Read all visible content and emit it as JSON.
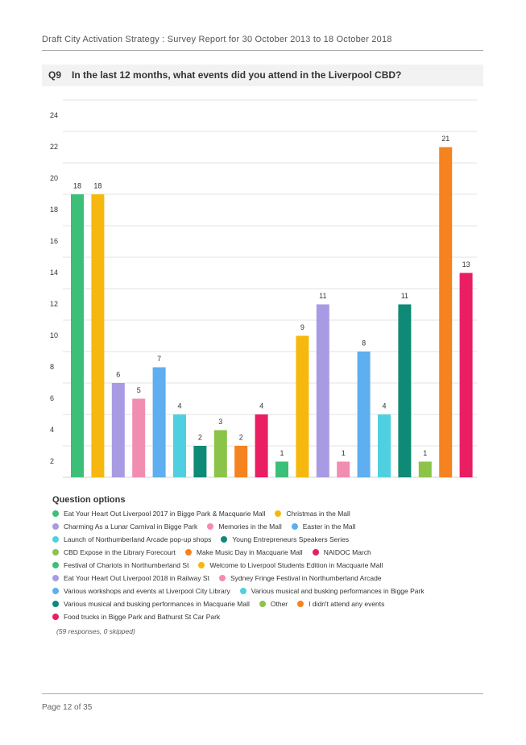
{
  "header": "Draft City Activation Strategy : Survey Report for 30 October 2013 to 18 October 2018",
  "question": {
    "number": "Q9",
    "text": "In the last 12 months, what events did you attend in the Liverpool CBD?"
  },
  "chart_data": {
    "type": "bar",
    "categories": [
      "Eat Your Heart Out Liverpool 2017 in Bigge Park & Macquarie Mall",
      "Christmas in the Mall",
      "Charming As a Lunar Carnival in Bigge Park",
      "Memories in the Mall",
      "Easter in the Mall",
      "Launch of Northumberland Arcade pop-up shops",
      "Young Entrepreneurs Speakers Series",
      "CBD Expose in the Library Forecourt",
      "Make Music Day in Macquarie Mall",
      "NAIDOC March",
      "Festival of Chariots in Northumberland St",
      "Welcome to Liverpool Students Edition in Macquarie Mall",
      "Eat Your Heart Out Liverpool 2018 in Railway St",
      "Sydney Fringe Festival in Northumberland Arcade",
      "Various workshops and events at Liverpool City Library",
      "Various musical and busking performances in Bigge Park",
      "Various musical and busking performances in Macquarie Mall",
      "Other",
      "I didn't attend any events",
      "Food trucks in Bigge Park and Bathurst St Car Park"
    ],
    "values": [
      18,
      18,
      6,
      5,
      7,
      4,
      2,
      3,
      2,
      4,
      1,
      9,
      11,
      1,
      8,
      4,
      11,
      1,
      21,
      13
    ],
    "colors": [
      "#3cbf78",
      "#f6b80f",
      "#a99be3",
      "#f28db2",
      "#5eaef0",
      "#4fd0e0",
      "#0e8a76",
      "#8cc349",
      "#f5831f",
      "#e91e63",
      "#3cbf78",
      "#f6b80f",
      "#a99be3",
      "#f28db2",
      "#5eaef0",
      "#4fd0e0",
      "#0e8a76",
      "#8cc349",
      "#f5831f",
      "#e91e63"
    ],
    "ylim": [
      0,
      24
    ],
    "yticks": [
      2,
      4,
      6,
      8,
      10,
      12,
      14,
      16,
      18,
      20,
      22,
      24
    ],
    "grid": true,
    "legend_title": "Question options"
  },
  "note": "(59 responses, 0 skipped)",
  "footer": "Page 12 of 35"
}
